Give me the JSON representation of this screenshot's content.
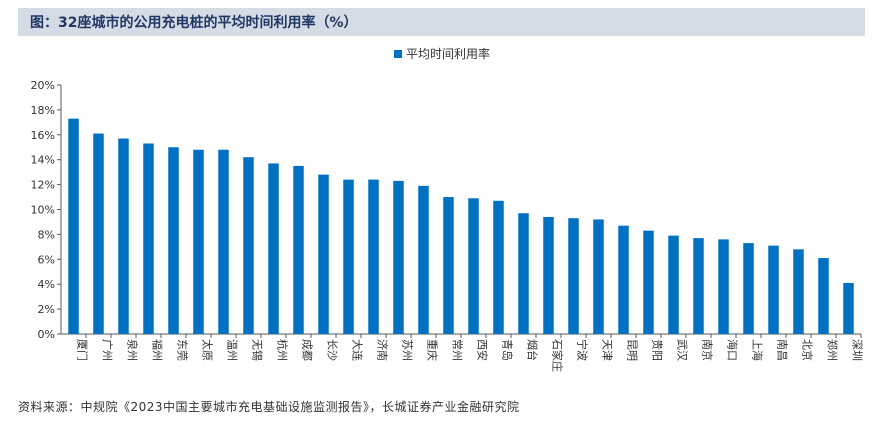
{
  "title": "图：32座城市的公用充电桩的平均时间利用率（%）",
  "source": "资料来源：中规院《2023中国主要城市充电基础设施监测报告》，长城证券产业金融研究院",
  "colors": {
    "bar": "#0070c0",
    "title_bg": "#d6dce5",
    "title_text": "#1f3864",
    "axis": "#595959"
  },
  "chart_data": {
    "type": "bar",
    "title": "",
    "xlabel": "",
    "ylabel": "",
    "legend": "top-center",
    "grid": false,
    "ylim": [
      0,
      20
    ],
    "yticks": [
      "0%",
      "2%",
      "4%",
      "6%",
      "8%",
      "10%",
      "12%",
      "14%",
      "16%",
      "18%",
      "20%"
    ],
    "categories": [
      "厦门",
      "广州",
      "泉州",
      "福州",
      "东莞",
      "太原",
      "温州",
      "无锡",
      "杭州",
      "成都",
      "长沙",
      "大连",
      "济南",
      "苏州",
      "重庆",
      "常州",
      "西安",
      "青岛",
      "烟台",
      "石家庄",
      "宁波",
      "天津",
      "昆明",
      "贵阳",
      "武汉",
      "南京",
      "海口",
      "上海",
      "南昌",
      "北京",
      "郑州",
      "深圳"
    ],
    "series": [
      {
        "name": "平均时间利用率",
        "values": [
          17.3,
          16.1,
          15.7,
          15.3,
          15.0,
          14.8,
          14.8,
          14.2,
          13.7,
          13.5,
          12.8,
          12.4,
          12.4,
          12.3,
          11.9,
          11.0,
          10.9,
          10.7,
          9.7,
          9.4,
          9.3,
          9.2,
          8.7,
          8.3,
          7.9,
          7.7,
          7.6,
          7.3,
          7.1,
          6.8,
          6.1,
          4.1
        ]
      }
    ]
  }
}
